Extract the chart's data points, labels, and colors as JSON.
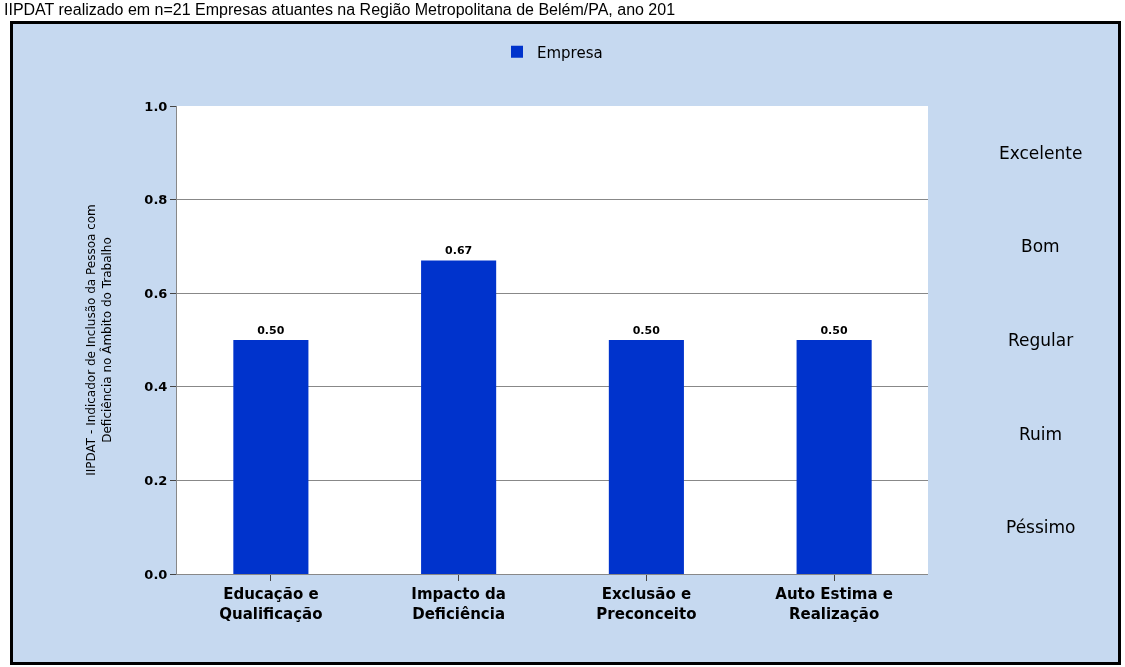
{
  "chart_data": {
    "type": "bar",
    "title": "IIPDAT realizado em n=21 Empresas atuantes na Região Metropolitana de Belém/PA, ano 201",
    "ylabel": "IIPDAT - Indicador de Inclusão da Pessoa com\nDeficiência no Âmbito do Trabalho",
    "categories": [
      "Educação e\nQualificação",
      "Impacto da\nDeficiência",
      "Exclusão e\nPreconceito",
      "Auto Estima e\nRealização"
    ],
    "series": [
      {
        "name": "Empresa",
        "color": "#0033cc",
        "values": [
          0.5,
          0.67,
          0.5,
          0.5
        ],
        "value_labels": [
          "0.50",
          "0.67",
          "0.50",
          "0.50"
        ]
      }
    ],
    "annotations": [
      "Excelente",
      "Bom",
      "Regular",
      "Ruim",
      "Péssimo"
    ],
    "ylim": [
      0,
      1
    ],
    "yticks": [
      {
        "value": 0,
        "label": "0.0"
      },
      {
        "value": 0.2,
        "label": "0.2"
      },
      {
        "value": 0.4,
        "label": "0.4"
      },
      {
        "value": 0.6,
        "label": "0.6"
      },
      {
        "value": 0.8,
        "label": "0.8"
      },
      {
        "value": 1,
        "label": "1.0"
      }
    ],
    "grid": "y",
    "legend": "top"
  }
}
